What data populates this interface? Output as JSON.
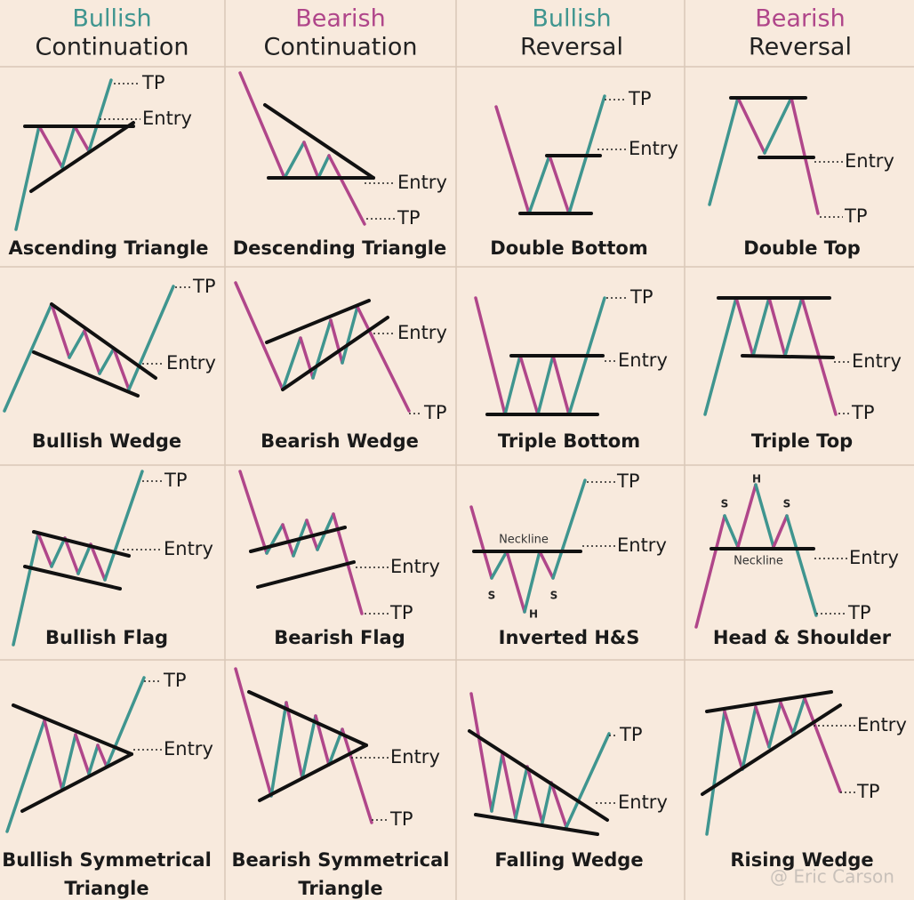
{
  "headers": [
    {
      "line1": "Bullish",
      "line2": "Continuation"
    },
    {
      "line1": "Bearish",
      "line2": "Continuation"
    },
    {
      "line1": "Bullish",
      "line2": "Reversal"
    },
    {
      "line1": "Bearish",
      "line2": "Reversal"
    }
  ],
  "patterns": [
    {
      "name": [
        "Ascending Triangle"
      ],
      "labels": {
        "tp": "TP",
        "entry": "Entry"
      }
    },
    {
      "name": [
        "Descending Triangle"
      ],
      "labels": {
        "tp": "TP",
        "entry": "Entry"
      }
    },
    {
      "name": [
        "Double Bottom"
      ],
      "labels": {
        "tp": "TP",
        "entry": "Entry"
      }
    },
    {
      "name": [
        "Double Top"
      ],
      "labels": {
        "tp": "TP",
        "entry": "Entry"
      }
    },
    {
      "name": [
        "Bullish Wedge"
      ],
      "labels": {
        "tp": "TP",
        "entry": "Entry"
      }
    },
    {
      "name": [
        "Bearish Wedge"
      ],
      "labels": {
        "tp": "TP",
        "entry": "Entry"
      }
    },
    {
      "name": [
        "Triple Bottom"
      ],
      "labels": {
        "tp": "TP",
        "entry": "Entry"
      }
    },
    {
      "name": [
        "Triple Top"
      ],
      "labels": {
        "tp": "TP",
        "entry": "Entry"
      }
    },
    {
      "name": [
        "Bullish Flag"
      ],
      "labels": {
        "tp": "TP",
        "entry": "Entry"
      }
    },
    {
      "name": [
        "Bearish Flag"
      ],
      "labels": {
        "tp": "TP",
        "entry": "Entry"
      }
    },
    {
      "name": [
        "Inverted H&S"
      ],
      "labels": {
        "tp": "TP",
        "entry": "Entry",
        "neckline": "Neckline",
        "s1": "S",
        "h": "H",
        "s2": "S"
      }
    },
    {
      "name": [
        "Head & Shoulder"
      ],
      "labels": {
        "tp": "TP",
        "entry": "Entry",
        "neckline": "Neckline",
        "s1": "S",
        "h": "H",
        "s2": "S"
      }
    },
    {
      "name": [
        "Bullish Symmetrical",
        "Triangle"
      ],
      "labels": {
        "tp": "TP",
        "entry": "Entry"
      }
    },
    {
      "name": [
        "Bearish Symmetrical",
        "Triangle"
      ],
      "labels": {
        "tp": "TP",
        "entry": "Entry"
      }
    },
    {
      "name": [
        "Falling Wedge"
      ],
      "labels": {
        "tp": "TP",
        "entry": "Entry"
      }
    },
    {
      "name": [
        "Rising Wedge"
      ],
      "labels": {
        "tp": "TP",
        "entry": "Entry"
      }
    }
  ],
  "watermark": "@ Eric Carson"
}
